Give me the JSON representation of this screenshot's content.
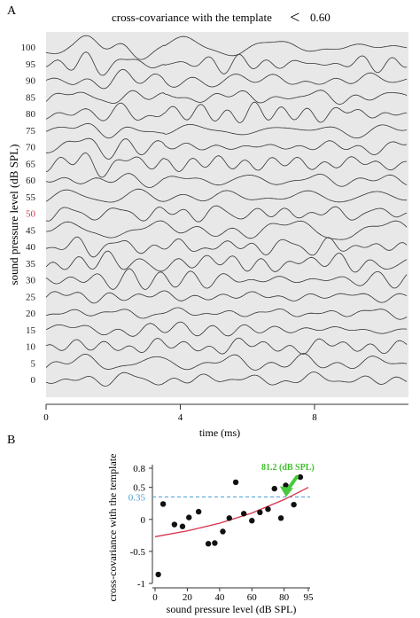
{
  "panel_a": {
    "label": "A",
    "header_text": "cross-covariance with the template",
    "header_symbol": "<",
    "header_value": "0.60"
  },
  "panel_b": {
    "label": "B"
  },
  "colors": {
    "panel_bg": "#e8e8e8",
    "trace": "#333333",
    "highlight_label": "#d6334a",
    "fit_curve": "#d6334a",
    "threshold_line": "#4a9fd9",
    "threshold_label": "#4a9fd9",
    "arrow": "#46c93a",
    "arrow_label": "#3fbf2c",
    "point": "#111111"
  },
  "chart_data": [
    {
      "type": "line",
      "title": "",
      "xlabel": "time (ms)",
      "ylabel": "sound pressure level (dB SPL)",
      "xlim": [
        0,
        10.8
      ],
      "xticks": [
        0,
        4,
        8
      ],
      "grid": false,
      "series_levels": [
        100,
        95,
        90,
        85,
        80,
        75,
        70,
        65,
        60,
        55,
        50,
        45,
        40,
        35,
        30,
        25,
        20,
        15,
        10,
        5,
        0
      ],
      "highlight_level": 50
    },
    {
      "type": "scatter",
      "title": "",
      "xlabel": "sound pressure level (dB SPL)",
      "ylabel": "cross-covariance with the template",
      "xlim": [
        0,
        95
      ],
      "ylim": [
        -1.0,
        0.8
      ],
      "xticks": [
        0,
        20,
        40,
        60,
        80,
        95
      ],
      "yticks": [
        -1.0,
        -0.5,
        0,
        0.5,
        0.8
      ],
      "x": [
        2,
        5,
        12,
        17,
        21,
        27,
        33,
        37,
        42,
        46,
        50,
        55,
        60,
        65,
        70,
        74,
        78,
        81,
        86,
        90
      ],
      "y": [
        -0.86,
        0.24,
        -0.08,
        -0.11,
        0.03,
        0.12,
        -0.38,
        -0.37,
        -0.19,
        0.02,
        0.58,
        0.09,
        -0.02,
        0.11,
        0.16,
        0.48,
        0.02,
        0.53,
        0.23,
        0.66
      ],
      "threshold": {
        "value": 0.35,
        "label": "0.35"
      },
      "annotation": {
        "text": "81.2 (dB SPL)",
        "x": 81.2
      },
      "fit_curve": {
        "x": [
          0,
          20,
          40,
          60,
          80,
          95
        ],
        "y": [
          -0.27,
          -0.18,
          -0.06,
          0.1,
          0.31,
          0.5
        ]
      }
    }
  ]
}
